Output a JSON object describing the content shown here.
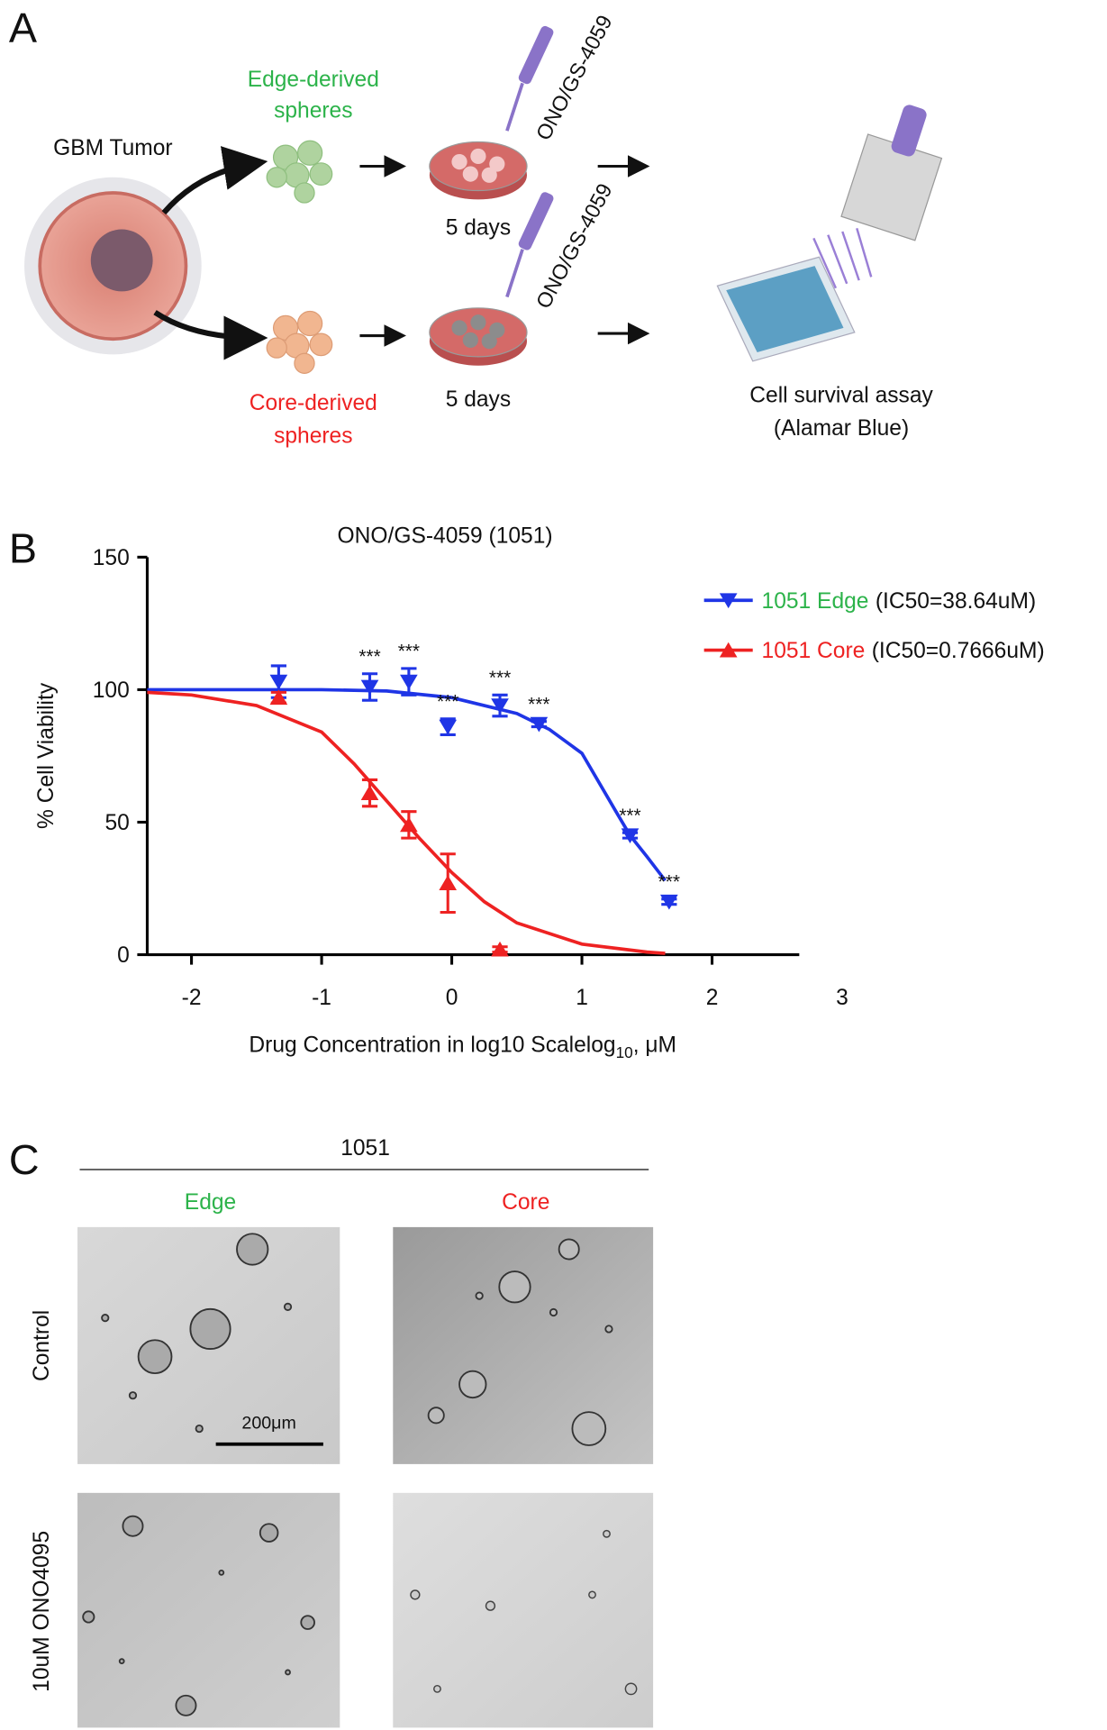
{
  "panel_a": {
    "label": "A",
    "tumor": "GBM Tumor",
    "edge_spheres": [
      "Edge-derived",
      "spheres"
    ],
    "core_spheres": [
      "Core-derived",
      "spheres"
    ],
    "drug_top": "ONO/GS-4059",
    "drug_bottom": "ONO/GS-4059",
    "days_top": "5 days",
    "days_bottom": "5 days",
    "assay": [
      "Cell survival assay",
      "(Alamar Blue)"
    ]
  },
  "panel_b_label": "B",
  "chart_data": {
    "type": "dose_response",
    "title": "ONO/GS-4059 (1051)",
    "ylabel": "% Cell Viability",
    "xlabel": [
      "Drug Concentration in log10 Scalelog",
      "10",
      ", μM"
    ],
    "xlim": [
      -2.34,
      2.67
    ],
    "ylim": [
      0,
      150
    ],
    "xticks": [
      -2,
      -1,
      0,
      1,
      2,
      3
    ],
    "yticks": [
      0,
      50,
      100,
      150
    ],
    "series": [
      {
        "name": "1051 Edge",
        "ic50": "(IC50=38.64uM)",
        "color": "#1f35e6",
        "label_color": "#2cb34a",
        "marker": "triangle-down",
        "x": [
          -1.33,
          -0.63,
          -0.33,
          -0.03,
          0.37,
          0.67,
          1.37,
          1.67
        ],
        "values": [
          103,
          101,
          103,
          86,
          94,
          87,
          45,
          20
        ],
        "errors": [
          6,
          5,
          5,
          3,
          4,
          1,
          1,
          1
        ],
        "annotations": [
          null,
          "***",
          "***",
          "***",
          "***",
          "***",
          "***",
          "***"
        ],
        "fit_x": [
          -2.34,
          -1.5,
          -1,
          -0.5,
          0,
          0.5,
          0.75,
          1,
          1.25,
          1.37,
          1.5,
          1.64
        ],
        "fit_values": [
          100,
          100,
          100,
          99.5,
          97,
          91,
          85,
          76,
          55,
          45,
          37,
          28
        ]
      },
      {
        "name": "1051 Core",
        "ic50": "(IC50=0.7666uM)",
        "color": "#ee2222",
        "label_color": "#ee2222",
        "marker": "triangle-up",
        "x": [
          -1.33,
          -0.63,
          -0.33,
          -0.03,
          0.37
        ],
        "values": [
          97,
          61,
          49,
          27,
          2
        ],
        "errors": [
          2,
          5,
          5,
          11,
          1
        ],
        "fit_x": [
          -2.34,
          -2,
          -1.5,
          -1,
          -0.75,
          -0.5,
          -0.25,
          0,
          0.25,
          0.5,
          1,
          1.5,
          1.64
        ],
        "fit_values": [
          99,
          98,
          94,
          84,
          72,
          58,
          44,
          31,
          20,
          12,
          4,
          1,
          0.5
        ]
      }
    ]
  },
  "panel_c": {
    "label": "C",
    "cell_line": "1051",
    "col_edge": "Edge",
    "col_core": "Core",
    "row_control": "Control",
    "row_treated": "10uM ONO4095",
    "scale_bar": "200μm"
  }
}
